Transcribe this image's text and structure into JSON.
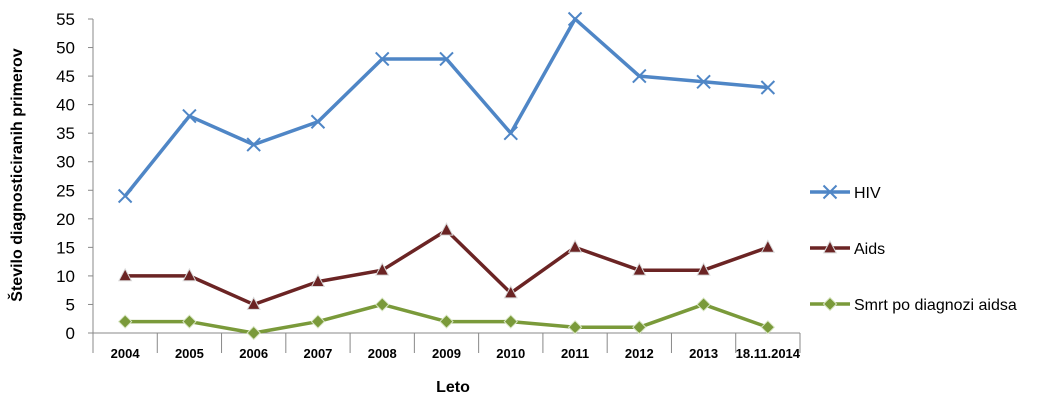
{
  "chart_data": {
    "type": "line",
    "categories": [
      "2004",
      "2005",
      "2006",
      "2007",
      "2008",
      "2009",
      "2010",
      "2011",
      "2012",
      "2013",
      "18.11.2014"
    ],
    "series": [
      {
        "name": "HIV",
        "values": [
          24,
          38,
          33,
          37,
          48,
          48,
          35,
          55,
          45,
          44,
          43
        ],
        "color": "#4f86c6",
        "marker": "x"
      },
      {
        "name": "Aids",
        "values": [
          10,
          10,
          5,
          9,
          11,
          18,
          7,
          15,
          11,
          11,
          15
        ],
        "color": "#6b2424",
        "marker": "triangle"
      },
      {
        "name": "Smrt po diagnozi aidsa",
        "values": [
          2,
          2,
          0,
          2,
          5,
          2,
          2,
          1,
          1,
          5,
          1
        ],
        "color": "#7a9a3a",
        "marker": "diamond"
      }
    ],
    "xlabel": "Leto",
    "ylabel": "Število diagnosticiranih primerov",
    "ylim": [
      0,
      55
    ],
    "yticks": [
      0,
      5,
      10,
      15,
      20,
      25,
      30,
      35,
      40,
      45,
      50,
      55
    ],
    "grid": false,
    "legend": "right"
  }
}
